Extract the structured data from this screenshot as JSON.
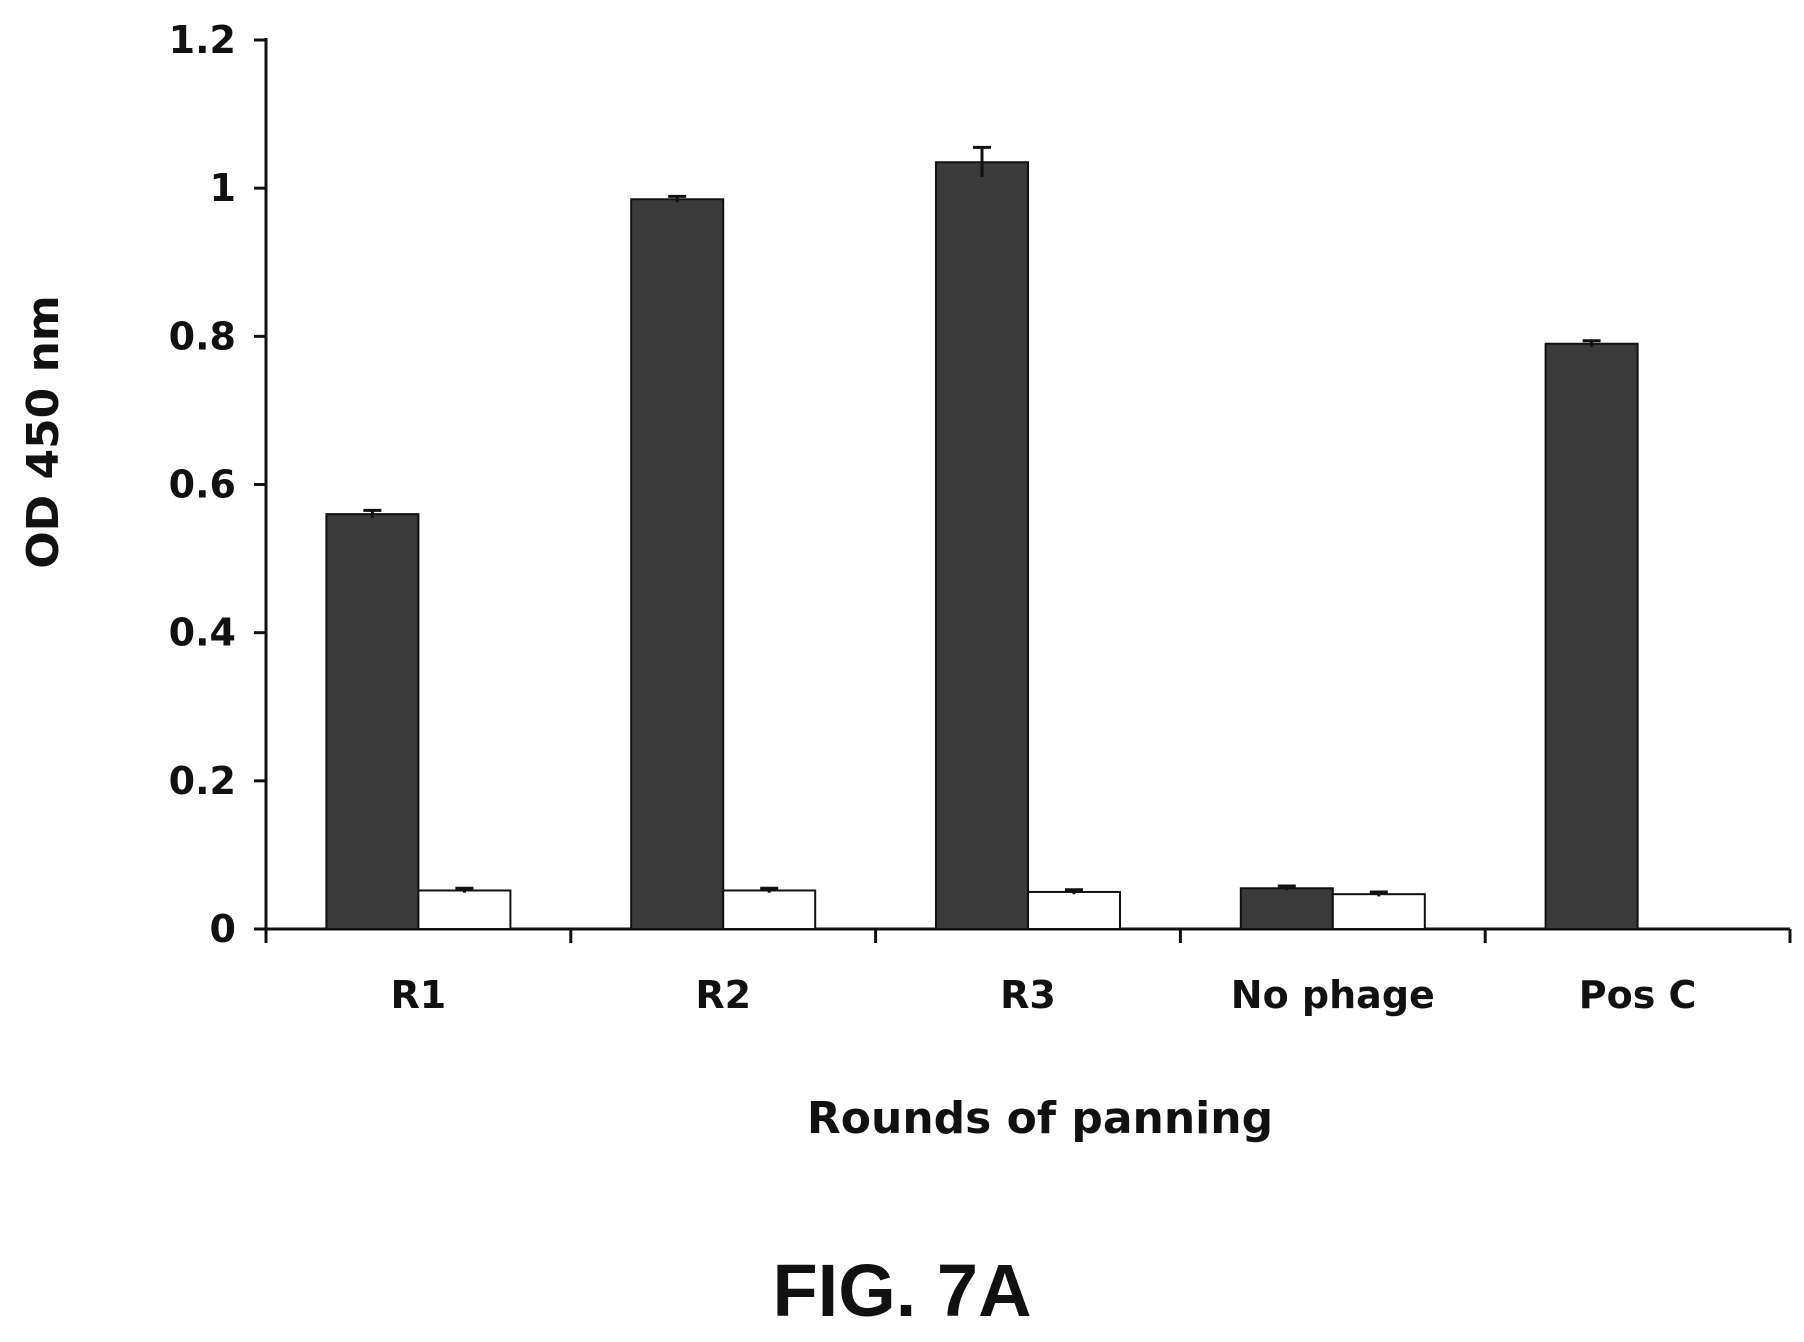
{
  "figure": {
    "caption": "FIG. 7A"
  },
  "colors": {
    "filled": "#3a3a3a",
    "open": "#ffffff",
    "axis": "#111111"
  },
  "chart_data": {
    "type": "bar",
    "xlabel": "Rounds of panning",
    "ylabel": "OD 450 nm",
    "ylim": [
      0,
      1.2
    ],
    "yticks": [
      0,
      0.2,
      0.4,
      0.6,
      0.8,
      1,
      1.2
    ],
    "ytick_labels": [
      "0",
      "0.2",
      "0.4",
      "0.6",
      "0.8",
      "1",
      "1.2"
    ],
    "categories": [
      "R1",
      "R2",
      "R3",
      "No phage",
      "Pos C"
    ],
    "legend": "none",
    "grid": false,
    "series": [
      {
        "fill": "filled",
        "values": [
          0.56,
          0.985,
          1.035,
          0.055,
          0.79
        ],
        "errors": [
          0.005,
          0.004,
          0.02,
          0.003,
          0.004
        ]
      },
      {
        "fill": "open",
        "values": [
          0.052,
          0.052,
          0.05,
          0.047,
          null
        ],
        "errors": [
          0.003,
          0.003,
          0.003,
          0.003,
          null
        ]
      }
    ]
  }
}
